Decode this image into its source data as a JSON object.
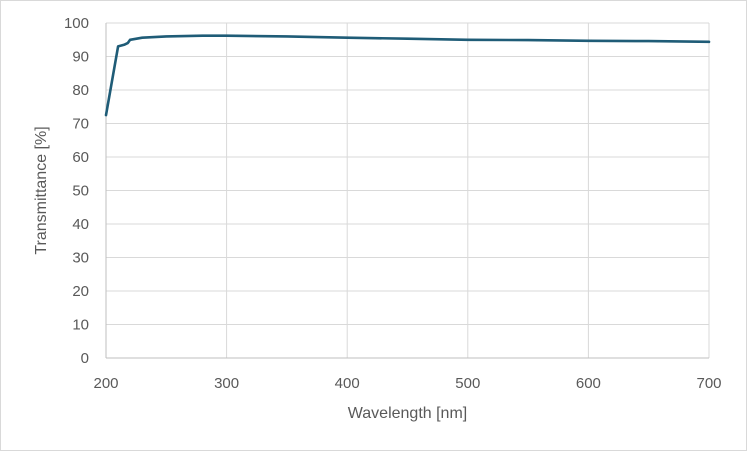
{
  "chart_data": {
    "type": "line",
    "title": "",
    "xlabel": "Wavelength [nm]",
    "ylabel": "Transmittance [%]",
    "xlim": [
      200,
      700
    ],
    "ylim": [
      0,
      100
    ],
    "xticks": [
      200,
      300,
      400,
      500,
      600,
      700
    ],
    "yticks": [
      0,
      10,
      20,
      30,
      40,
      50,
      60,
      70,
      80,
      90,
      100
    ],
    "grid": true,
    "legend": "none",
    "series": [
      {
        "color": "#1f5c77",
        "x": [
          200,
          210,
          215,
          218,
          220,
          230,
          250,
          280,
          300,
          350,
          400,
          450,
          500,
          550,
          600,
          650,
          700
        ],
        "y": [
          72.5,
          93.0,
          93.5,
          94.0,
          95.0,
          95.6,
          96.0,
          96.2,
          96.2,
          96.0,
          95.6,
          95.3,
          95.0,
          94.9,
          94.7,
          94.6,
          94.4
        ]
      }
    ]
  }
}
